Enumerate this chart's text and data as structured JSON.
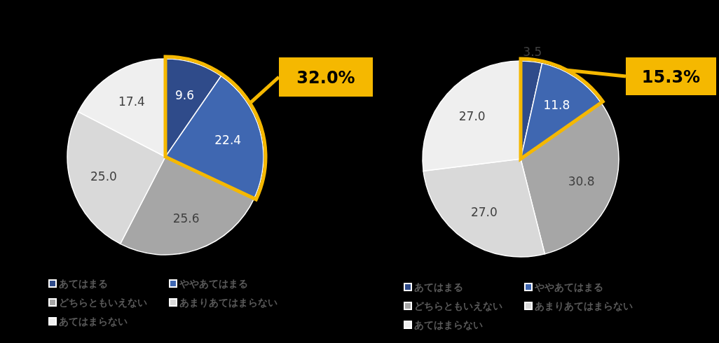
{
  "chart_data": [
    {
      "type": "pie",
      "categories": [
        "あてはまる",
        "ややあてはまる",
        "どちらともいえない",
        "あまりあてはまらない",
        "あてはまらない"
      ],
      "values": [
        9.6,
        22.4,
        25.6,
        25.0,
        17.4
      ],
      "value_labels": [
        "9.6",
        "22.4",
        "25.6",
        "25.0",
        "17.4"
      ],
      "colors": [
        "#2f4b8a",
        "#3f67b1",
        "#a6a6a6",
        "#d9d9d9",
        "#efefef"
      ],
      "legend": "bottom",
      "annotations": [
        "32.0%"
      ]
    },
    {
      "type": "pie",
      "categories": [
        "あてはまる",
        "ややあてはまる",
        "どちらともいえない",
        "あまりあてはまらない",
        "あてはまらない"
      ],
      "values": [
        3.5,
        11.8,
        30.8,
        27.0,
        27.0
      ],
      "value_labels": [
        "3.5",
        "11.8",
        "30.8",
        "27.0",
        "27.0"
      ],
      "colors": [
        "#2f4b8a",
        "#3f67b1",
        "#a6a6a6",
        "#d9d9d9",
        "#efefef"
      ],
      "legend": "bottom",
      "annotations": [
        "15.3%"
      ]
    }
  ]
}
